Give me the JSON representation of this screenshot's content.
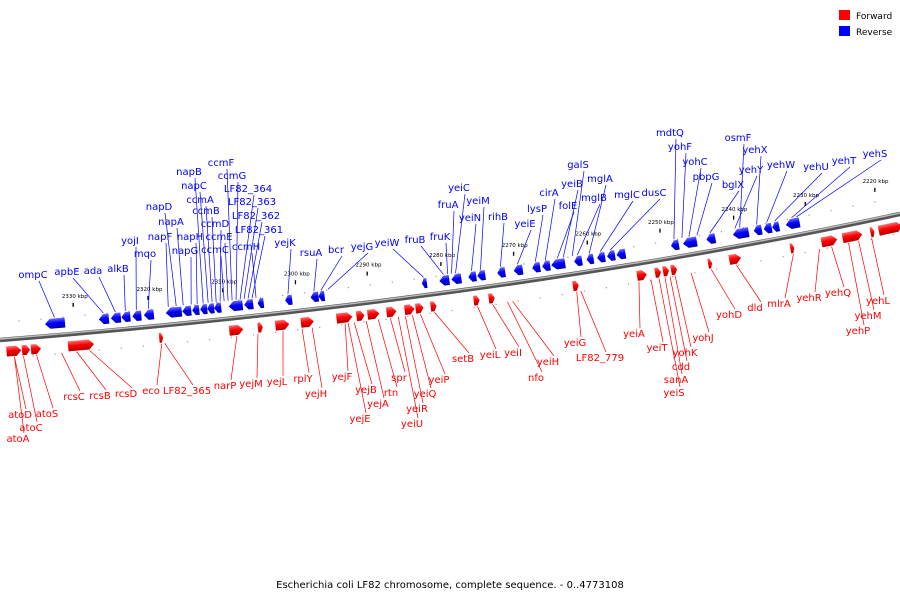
{
  "legend": {
    "forward_label": "Forward",
    "reverse_label": "Reverse",
    "forward_color": "#ff0000",
    "reverse_color": "#0000ff"
  },
  "caption": "Escherichia coli LF82 chromosome, complete sequence. - 0..4773108",
  "tick_unit": "kbp",
  "ticks": [
    {
      "kbp": 2330,
      "label": "2330 kbp"
    },
    {
      "kbp": 2320,
      "label": "2320 kbp"
    },
    {
      "kbp": 2310,
      "label": "2310 kbp"
    },
    {
      "kbp": 2300,
      "label": "2300 kbp"
    },
    {
      "kbp": 2290,
      "label": "2290 kbp"
    },
    {
      "kbp": 2280,
      "label": "2280 kbp"
    },
    {
      "kbp": 2270,
      "label": "2270 kbp"
    },
    {
      "kbp": 2260,
      "label": "2260 kbp"
    },
    {
      "kbp": 2250,
      "label": "2250 kbp"
    },
    {
      "kbp": 2240,
      "label": "2240 kbp"
    },
    {
      "kbp": 2230,
      "label": "2230 kbp"
    },
    {
      "kbp": 2220,
      "label": "2220 kbp"
    }
  ],
  "reverse_genes": [
    "ompC",
    "apbE",
    "ada",
    "alkB",
    "yojI",
    "mqo",
    "napF",
    "napD",
    "napA",
    "napG",
    "napH",
    "napB",
    "napC",
    "ccmA",
    "ccmB",
    "ccmD",
    "ccmC",
    "ccmE",
    "ccmF",
    "ccmG",
    "LF82_364",
    "LF82_363",
    "LF82_362",
    "LF82_361",
    "ccmH",
    "yejK",
    "rsuA",
    "bcr",
    "yejG",
    "yeiW",
    "fruB",
    "fruK",
    "fruA",
    "yeiC",
    "yeiN",
    "yeiM",
    "rihB",
    "yeiE",
    "lysP",
    "cirA",
    "folE",
    "yeiB",
    "galS",
    "mglB",
    "mglA",
    "mglC",
    "dusC",
    "mdtQ",
    "yohF",
    "yohC",
    "pbpG",
    "bglX",
    "yehY",
    "osmF",
    "yehX",
    "yehW",
    "yehU",
    "yehT",
    "yehS"
  ],
  "forward_genes": [
    "atoD",
    "atoC",
    "atoA",
    "atoS",
    "rcsC",
    "rcsB",
    "rcsD",
    "eco",
    "LF82_365",
    "narP",
    "yejM",
    "yejL",
    "rplY",
    "yejH",
    "yejF",
    "yejE",
    "yejB",
    "yejA",
    "rtn",
    "spr",
    "yeiU",
    "yeiR",
    "yeiQ",
    "yeiP",
    "setB",
    "yeiL",
    "yeiI",
    "nfo",
    "yeiH",
    "yeiG",
    "LF82_779",
    "yeiA",
    "yeiT",
    "yeiS",
    "sanA",
    "cdd",
    "yohK",
    "yohJ",
    "yohD",
    "dld",
    "mlrA",
    "yehR",
    "yehQ",
    "yehP",
    "yehM",
    "yehL"
  ]
}
